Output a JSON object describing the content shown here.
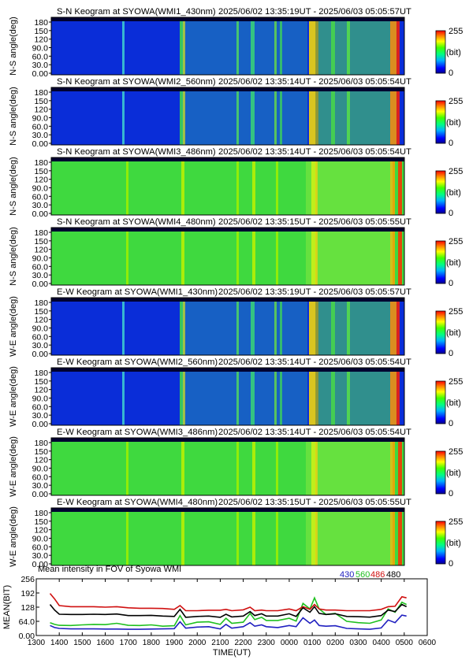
{
  "keograms": [
    {
      "prefix": "S-N Keogram at SYOWA",
      "instrument": "(WMI1_430nm)",
      "time_range": "2025/06/02 13:35:19UT - 2025/06/03 05:05:57UT",
      "ylabel": "N-S angle(deg)",
      "ticks": [
        "180",
        "150",
        "120",
        "90.0",
        "60.0",
        "30.0",
        "0.00"
      ],
      "colorbar": {
        "max": "255",
        "unit": "(bit)",
        "min": "0"
      }
    },
    {
      "prefix": "S-N Keogram at SYOWA",
      "instrument": "(WMI2_560nm)",
      "time_range": "2025/06/02 13:35:14UT - 2025/06/03 05:05:54UT",
      "ylabel": "N-S angle(deg)",
      "ticks": [
        "180",
        "150",
        "120",
        "90.0",
        "60.0",
        "30.0",
        "0.00"
      ],
      "colorbar": {
        "max": "255",
        "unit": "(bit)",
        "min": "0"
      }
    },
    {
      "prefix": "S-N Keogram at SYOWA",
      "instrument": "(WMI3_486nm)",
      "time_range": "2025/06/02 13:35:14UT - 2025/06/03 05:05:54UT",
      "ylabel": "N-S angle(deg)",
      "ticks": [
        "180",
        "150",
        "120",
        "90.0",
        "60.0",
        "30.0",
        "0.00"
      ],
      "colorbar": {
        "max": "255",
        "unit": "(bit)",
        "min": "0"
      }
    },
    {
      "prefix": "S-N Keogram at SYOWA",
      "instrument": "(WMI4_480nm)",
      "time_range": "2025/06/02 13:35:15UT - 2025/06/03 05:05:55UT",
      "ylabel": "N-S angle(deg)",
      "ticks": [
        "180",
        "150",
        "120",
        "90.0",
        "60.0",
        "30.0",
        "0.00"
      ],
      "colorbar": {
        "max": "255",
        "unit": "(bit)",
        "min": "0"
      }
    },
    {
      "prefix": "E-W Keogram at SYOWA",
      "instrument": "(WMI1_430nm)",
      "time_range": "2025/06/02 13:35:19UT - 2025/06/03 05:05:57UT",
      "ylabel": "W-E angle(deg)",
      "ticks": [
        "180",
        "150",
        "120",
        "90.0",
        "60.0",
        "30.0",
        "0.00"
      ],
      "colorbar": {
        "max": "255",
        "unit": "(bit)",
        "min": "0"
      }
    },
    {
      "prefix": "E-W Keogram at SYOWA",
      "instrument": "(WMI2_560nm)",
      "time_range": "2025/06/02 13:35:14UT - 2025/06/03 05:05:54UT",
      "ylabel": "W-E angle(deg)",
      "ticks": [
        "180",
        "150",
        "120",
        "90.0",
        "60.0",
        "30.0",
        "0.00"
      ],
      "colorbar": {
        "max": "255",
        "unit": "(bit)",
        "min": "0"
      }
    },
    {
      "prefix": "E-W Keogram at SYOWA",
      "instrument": "(WMI3_486nm)",
      "time_range": "2025/06/02 13:35:14UT - 2025/06/03 05:05:54UT",
      "ylabel": "W-E angle(deg)",
      "ticks": [
        "180",
        "150",
        "120",
        "90.0",
        "60.0",
        "30.0",
        "0.00"
      ],
      "colorbar": {
        "max": "255",
        "unit": "(bit)",
        "min": "0"
      }
    },
    {
      "prefix": "E-W Keogram at SYOWA",
      "instrument": "(WMI4_480nm)",
      "time_range": "2025/06/02 13:35:15UT - 2025/06/03 05:05:55UT",
      "ylabel": "W-E angle(deg)",
      "ticks": [
        "180",
        "150",
        "120",
        "90.0",
        "60.0",
        "30.0",
        "0.00"
      ],
      "colorbar": {
        "max": "255",
        "unit": "(bit)",
        "min": "0"
      }
    }
  ],
  "colors": {
    "c430": "#2020c0",
    "c560": "#20c020",
    "c486": "#d01010",
    "c480": "#000000"
  },
  "chart_data": {
    "type": "line",
    "title": "Mean intensity in FOV of Syowa WMI",
    "xlabel": "TIME(UT)",
    "ylabel": "MEAN(BIT)",
    "xticks": [
      "1300",
      "1400",
      "1500",
      "1600",
      "1700",
      "1800",
      "1900",
      "2000",
      "2100",
      "2200",
      "2300",
      "0000",
      "0100",
      "0200",
      "0300",
      "0400",
      "0500",
      "0600"
    ],
    "yticks": [
      "0.00",
      "64.0",
      "128",
      "192",
      "256"
    ],
    "xlim": [
      13.0,
      30.0
    ],
    "ylim": [
      0,
      256
    ],
    "x": [
      13.6,
      13.8,
      14.0,
      14.5,
      15.0,
      15.5,
      16.0,
      16.5,
      17.0,
      17.5,
      18.0,
      18.5,
      19.0,
      19.25,
      19.5,
      20.0,
      20.5,
      21.0,
      21.25,
      21.5,
      22.0,
      22.3,
      22.5,
      22.8,
      23.0,
      23.5,
      24.0,
      24.3,
      24.6,
      24.9,
      25.1,
      25.3,
      25.6,
      26.0,
      26.5,
      27.0,
      27.5,
      28.0,
      28.3,
      28.6,
      28.9,
      29.1
    ],
    "series": [
      {
        "name": "430",
        "color": "#2020c0",
        "values": [
          45,
          36,
          32,
          30,
          30,
          30,
          29,
          29,
          28,
          28,
          29,
          30,
          31,
          62,
          33,
          38,
          40,
          30,
          50,
          33,
          40,
          58,
          42,
          48,
          40,
          36,
          45,
          40,
          80,
          55,
          70,
          45,
          42,
          44,
          32,
          30,
          28,
          34,
          70,
          58,
          92,
          88
        ]
      },
      {
        "name": "560",
        "color": "#20c020",
        "values": [
          58,
          50,
          46,
          45,
          48,
          50,
          49,
          55,
          46,
          45,
          48,
          42,
          44,
          90,
          48,
          60,
          62,
          50,
          78,
          55,
          60,
          100,
          72,
          82,
          68,
          68,
          78,
          65,
          145,
          120,
          170,
          120,
          95,
          100,
          64,
          58,
          55,
          70,
          120,
          105,
          150,
          140
        ]
      },
      {
        "name": "486",
        "color": "#d01010",
        "values": [
          190,
          165,
          135,
          130,
          130,
          130,
          128,
          130,
          125,
          123,
          123,
          122,
          118,
          135,
          112,
          112,
          114,
          114,
          118,
          112,
          116,
          128,
          112,
          115,
          112,
          112,
          120,
          112,
          130,
          118,
          140,
          120,
          115,
          115,
          112,
          112,
          112,
          118,
          130,
          132,
          175,
          170
        ]
      },
      {
        "name": "480",
        "color": "#000000",
        "values": [
          140,
          115,
          96,
          95,
          95,
          96,
          95,
          97,
          90,
          90,
          91,
          88,
          86,
          118,
          82,
          86,
          88,
          82,
          96,
          84,
          88,
          108,
          90,
          98,
          88,
          88,
          98,
          86,
          125,
          105,
          130,
          100,
          95,
          98,
          86,
          85,
          83,
          90,
          115,
          108,
          140,
          130
        ]
      }
    ]
  }
}
